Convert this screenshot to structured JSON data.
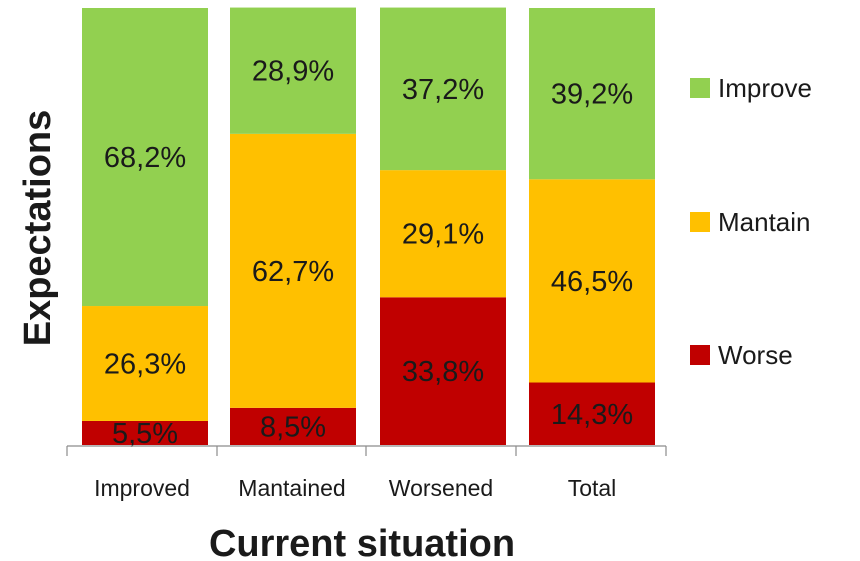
{
  "chart_data": {
    "type": "bar",
    "stacked": true,
    "percent_stacked": true,
    "categories": [
      "Improved",
      "Mantained",
      "Worsened",
      "Total"
    ],
    "series": [
      {
        "name": "Worse",
        "color": "#c00000",
        "values": [
          5.5,
          8.5,
          33.8,
          14.3
        ],
        "labels": [
          "5,5%",
          "8,5%",
          "33,8%",
          "14,3%"
        ]
      },
      {
        "name": "Mantain",
        "color": "#ffc000",
        "values": [
          26.3,
          62.7,
          29.1,
          46.5
        ],
        "labels": [
          "26,3%",
          "62,7%",
          "29,1%",
          "46,5%"
        ]
      },
      {
        "name": "Improve",
        "color": "#92d050",
        "values": [
          68.2,
          28.9,
          37.2,
          39.2
        ],
        "labels": [
          "68,2%",
          "28,9%",
          "37,2%",
          "39,2%"
        ]
      }
    ],
    "legend_order": [
      "Improve",
      "Mantain",
      "Worse"
    ],
    "xlabel": "Current situation",
    "ylabel": "Expectations",
    "ylim": [
      0,
      100
    ],
    "grid": false,
    "legend_position": "right"
  }
}
